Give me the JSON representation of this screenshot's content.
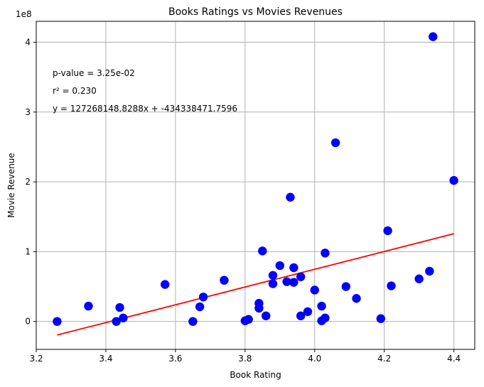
{
  "chart_data": {
    "type": "scatter",
    "title": "Books Ratings vs Movies Revenues",
    "xlabel": "Book Rating",
    "ylabel": "Movie Revenue",
    "y_offset_label": "1e8",
    "xlim": [
      3.2,
      4.46
    ],
    "ylim": [
      -0.4,
      4.3
    ],
    "x_ticks": [
      "3.2",
      "3.4",
      "3.6",
      "3.8",
      "4.0",
      "4.2",
      "4.4"
    ],
    "y_ticks": [
      "0",
      "1",
      "2",
      "3",
      "4"
    ],
    "grid": true,
    "marker_color": "#0000ff",
    "line_color": "#ff0000",
    "points": [
      [
        3.26,
        0.0
      ],
      [
        3.35,
        0.22
      ],
      [
        3.43,
        0.0
      ],
      [
        3.44,
        0.2
      ],
      [
        3.45,
        0.05
      ],
      [
        3.57,
        0.53
      ],
      [
        3.65,
        0.0
      ],
      [
        3.67,
        0.21
      ],
      [
        3.68,
        0.35
      ],
      [
        3.74,
        0.59
      ],
      [
        3.8,
        0.01
      ],
      [
        3.81,
        0.03
      ],
      [
        3.84,
        0.19
      ],
      [
        3.84,
        0.26
      ],
      [
        3.85,
        1.01
      ],
      [
        3.86,
        0.08
      ],
      [
        3.88,
        0.54
      ],
      [
        3.88,
        0.66
      ],
      [
        3.9,
        0.8
      ],
      [
        3.92,
        0.57
      ],
      [
        3.93,
        1.78
      ],
      [
        3.94,
        0.56
      ],
      [
        3.94,
        0.77
      ],
      [
        3.96,
        0.64
      ],
      [
        3.96,
        0.08
      ],
      [
        3.98,
        0.14
      ],
      [
        4.0,
        0.45
      ],
      [
        4.02,
        0.22
      ],
      [
        4.02,
        0.01
      ],
      [
        4.03,
        0.98
      ],
      [
        4.03,
        0.05
      ],
      [
        4.06,
        2.56
      ],
      [
        4.09,
        0.5
      ],
      [
        4.12,
        0.33
      ],
      [
        4.19,
        0.04
      ],
      [
        4.21,
        1.3
      ],
      [
        4.22,
        0.51
      ],
      [
        4.3,
        0.61
      ],
      [
        4.33,
        0.72
      ],
      [
        4.34,
        4.08
      ],
      [
        4.4,
        2.02
      ]
    ],
    "regression": {
      "slope": 1.272681488288,
      "intercept": -4.343384717596,
      "x_range": [
        3.26,
        4.4
      ]
    },
    "annotations": [
      "p-value = 3.25e-02",
      "r² = 0.230",
      "y = 127268148.8288x + -434338471.7596"
    ]
  }
}
